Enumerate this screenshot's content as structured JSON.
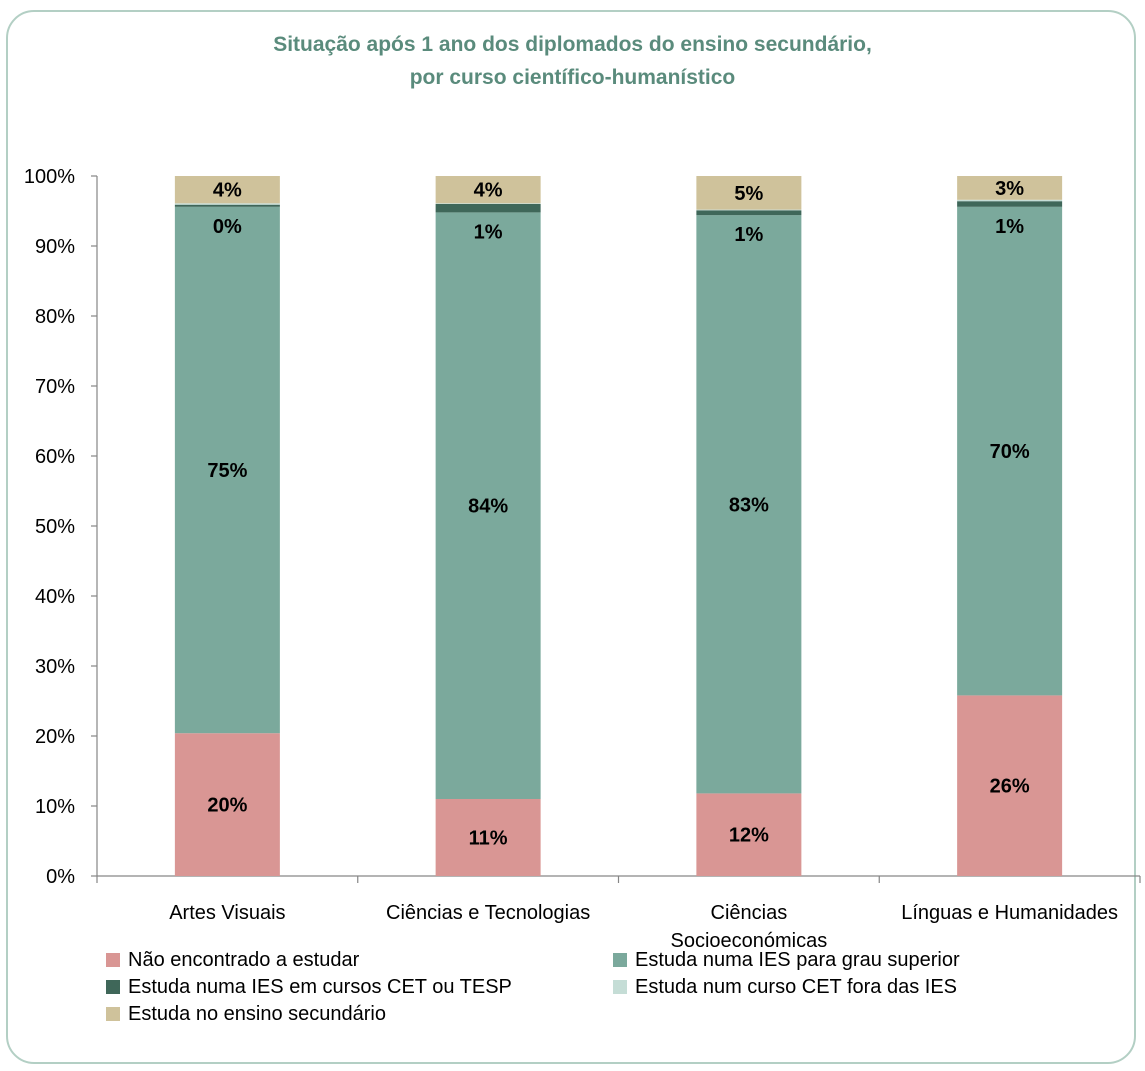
{
  "chart_data": {
    "type": "bar",
    "stacked": true,
    "title": "Situação após 1 ano dos diplomados do ensino secundário,",
    "subtitle": "por curso científico-humanístico",
    "categories": [
      "Artes Visuais",
      "Ciências e Tecnologias",
      "Ciências Socioeconómicas",
      "Línguas e Humanidades"
    ],
    "category_lines": [
      [
        "Artes Visuais"
      ],
      [
        "Ciências e Tecnologias"
      ],
      [
        "Ciências",
        "Socioeconómicas"
      ],
      [
        "Línguas e Humanidades"
      ]
    ],
    "ylim": [
      0,
      100
    ],
    "yticks": [
      "0%",
      "10%",
      "20%",
      "30%",
      "40%",
      "50%",
      "60%",
      "70%",
      "80%",
      "90%",
      "100%"
    ],
    "grid": false,
    "legend_position": "bottom",
    "series": [
      {
        "name": "Não encontrado a estudar",
        "color": "#d99694",
        "values": [
          20.4,
          11.0,
          11.8,
          25.8
        ],
        "labels": [
          "20%",
          "11%",
          "12%",
          "26%"
        ]
      },
      {
        "name": "Estuda numa IES para grau superior",
        "color": "#7ba99c",
        "values": [
          75.2,
          83.8,
          82.6,
          69.8
        ],
        "labels": [
          "75%",
          "84%",
          "83%",
          "70%"
        ]
      },
      {
        "name": "Estuda numa IES em cursos CET ou TESP",
        "color": "#3f6759",
        "values": [
          0.3,
          1.2,
          0.7,
          0.8
        ],
        "labels": [
          "0%",
          "1%",
          "1%",
          "1%"
        ]
      },
      {
        "name": "Estuda num curso CET fora das IES",
        "color": "#c5ddd6",
        "values": [
          0.2,
          0.1,
          0.1,
          0.2
        ],
        "labels": [
          "",
          "",
          "",
          ""
        ]
      },
      {
        "name": "Estuda no ensino secundário",
        "color": "#cfc29b",
        "values": [
          3.9,
          3.9,
          4.8,
          3.4
        ],
        "labels": [
          "4%",
          "4%",
          "5%",
          "3%"
        ]
      }
    ]
  }
}
